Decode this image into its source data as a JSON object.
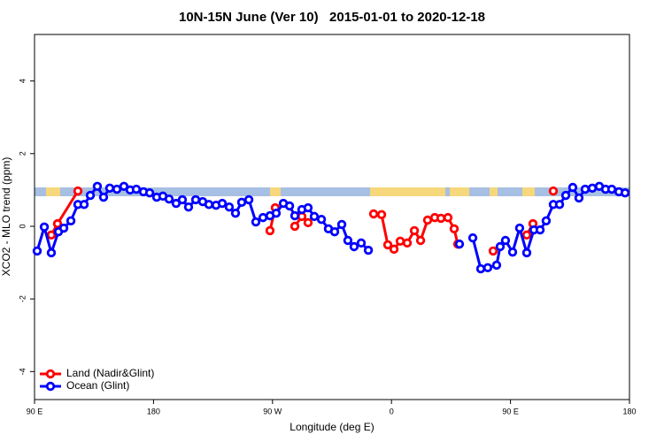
{
  "chart_data": {
    "type": "line",
    "title": "10N-15N June (Ver 10)   2015-01-01 to 2020-12-18",
    "x_label": "Longitude (deg E)",
    "y_label": "XCO2 - MLO trend (ppm)",
    "xlim": [
      90,
      540
    ],
    "ylim": [
      -4.77,
      5.28
    ],
    "xticks": [
      {
        "value": 90,
        "label": "90 E"
      },
      180,
      {
        "value": 270,
        "label": "90 W"
      },
      {
        "value": 360,
        "label": "0"
      },
      {
        "value": 450,
        "label": "90 E"
      },
      {
        "value": 540,
        "label": "180"
      }
    ],
    "yticks": [
      -4,
      -2,
      0,
      2,
      4
    ],
    "legend": "bottomleft",
    "series": [
      {
        "name": "Land (Nadir&Glint)",
        "color": "#ff0000",
        "x": [
          102.7,
          107.4,
          122.8,
          null,
          268.1,
          272.1,
          null,
          286.9,
          292.2,
          296.9,
          null,
          346.5,
          352.5,
          357.2,
          361.9,
          366.6,
          371.9,
          377.3,
          382.0,
          387.3,
          392.7,
          397.4,
          402.7,
          407.4,
          410.1,
          null,
          436.9,
          null,
          462.3,
          467.0,
          null,
          482.4
        ],
        "values": [
          -0.24,
          0.07,
          0.97,
          null,
          -0.12,
          0.51,
          null,
          0.0,
          0.27,
          0.1,
          null,
          0.34,
          0.32,
          -0.51,
          -0.63,
          -0.41,
          -0.46,
          -0.12,
          -0.39,
          0.17,
          0.24,
          0.22,
          0.24,
          -0.07,
          -0.49,
          null,
          -0.68,
          null,
          -0.24,
          0.07,
          null,
          0.97
        ]
      },
      {
        "name": "Ocean (Glint)",
        "color": "#0000ff",
        "x": [
          92.0,
          97.4,
          102.7,
          108.1,
          112.1,
          117.5,
          122.8,
          127.5,
          132.2,
          137.5,
          142.2,
          146.9,
          152.3,
          157.6,
          162.3,
          167.0,
          172.4,
          177.1,
          182.4,
          187.1,
          191.8,
          197.1,
          201.8,
          206.5,
          211.9,
          217.2,
          221.9,
          227.3,
          232.0,
          237.3,
          242.0,
          246.7,
          252.1,
          257.4,
          262.8,
          268.1,
          272.8,
          278.2,
          282.9,
          286.9,
          292.2,
          296.9,
          301.6,
          307.0,
          312.3,
          317.0,
          322.4,
          327.0,
          331.7,
          337.1,
          342.5,
          null,
          411.4,
          null,
          421.5,
          427.5,
          432.8,
          439.5,
          442.2,
          446.2,
          451.6,
          456.9,
          462.3,
          467.7,
          472.4,
          477.0,
          482.4,
          487.1,
          491.8,
          497.1,
          501.8,
          506.5,
          511.9,
          517.2,
          521.9,
          526.6,
          532.0,
          536.7
        ],
        "values": [
          -0.68,
          -0.02,
          -0.73,
          -0.15,
          -0.05,
          0.15,
          0.6,
          0.6,
          0.85,
          1.1,
          0.8,
          1.05,
          1.02,
          1.1,
          1.0,
          1.02,
          0.95,
          0.92,
          0.8,
          0.83,
          0.75,
          0.63,
          0.73,
          0.53,
          0.73,
          0.68,
          0.6,
          0.58,
          0.63,
          0.53,
          0.36,
          0.66,
          0.73,
          0.12,
          0.24,
          0.29,
          0.36,
          0.63,
          0.56,
          0.29,
          0.46,
          0.51,
          0.27,
          0.19,
          -0.07,
          -0.15,
          0.05,
          -0.39,
          -0.56,
          -0.46,
          -0.66,
          null,
          -0.49,
          null,
          -0.32,
          -1.17,
          -1.14,
          -1.07,
          -0.56,
          -0.39,
          -0.71,
          -0.05,
          -0.73,
          -0.1,
          -0.1,
          0.15,
          0.6,
          0.6,
          0.85,
          1.07,
          0.78,
          1.02,
          1.05,
          1.1,
          1.02,
          1.02,
          0.95,
          0.92
        ]
      }
    ]
  }
}
